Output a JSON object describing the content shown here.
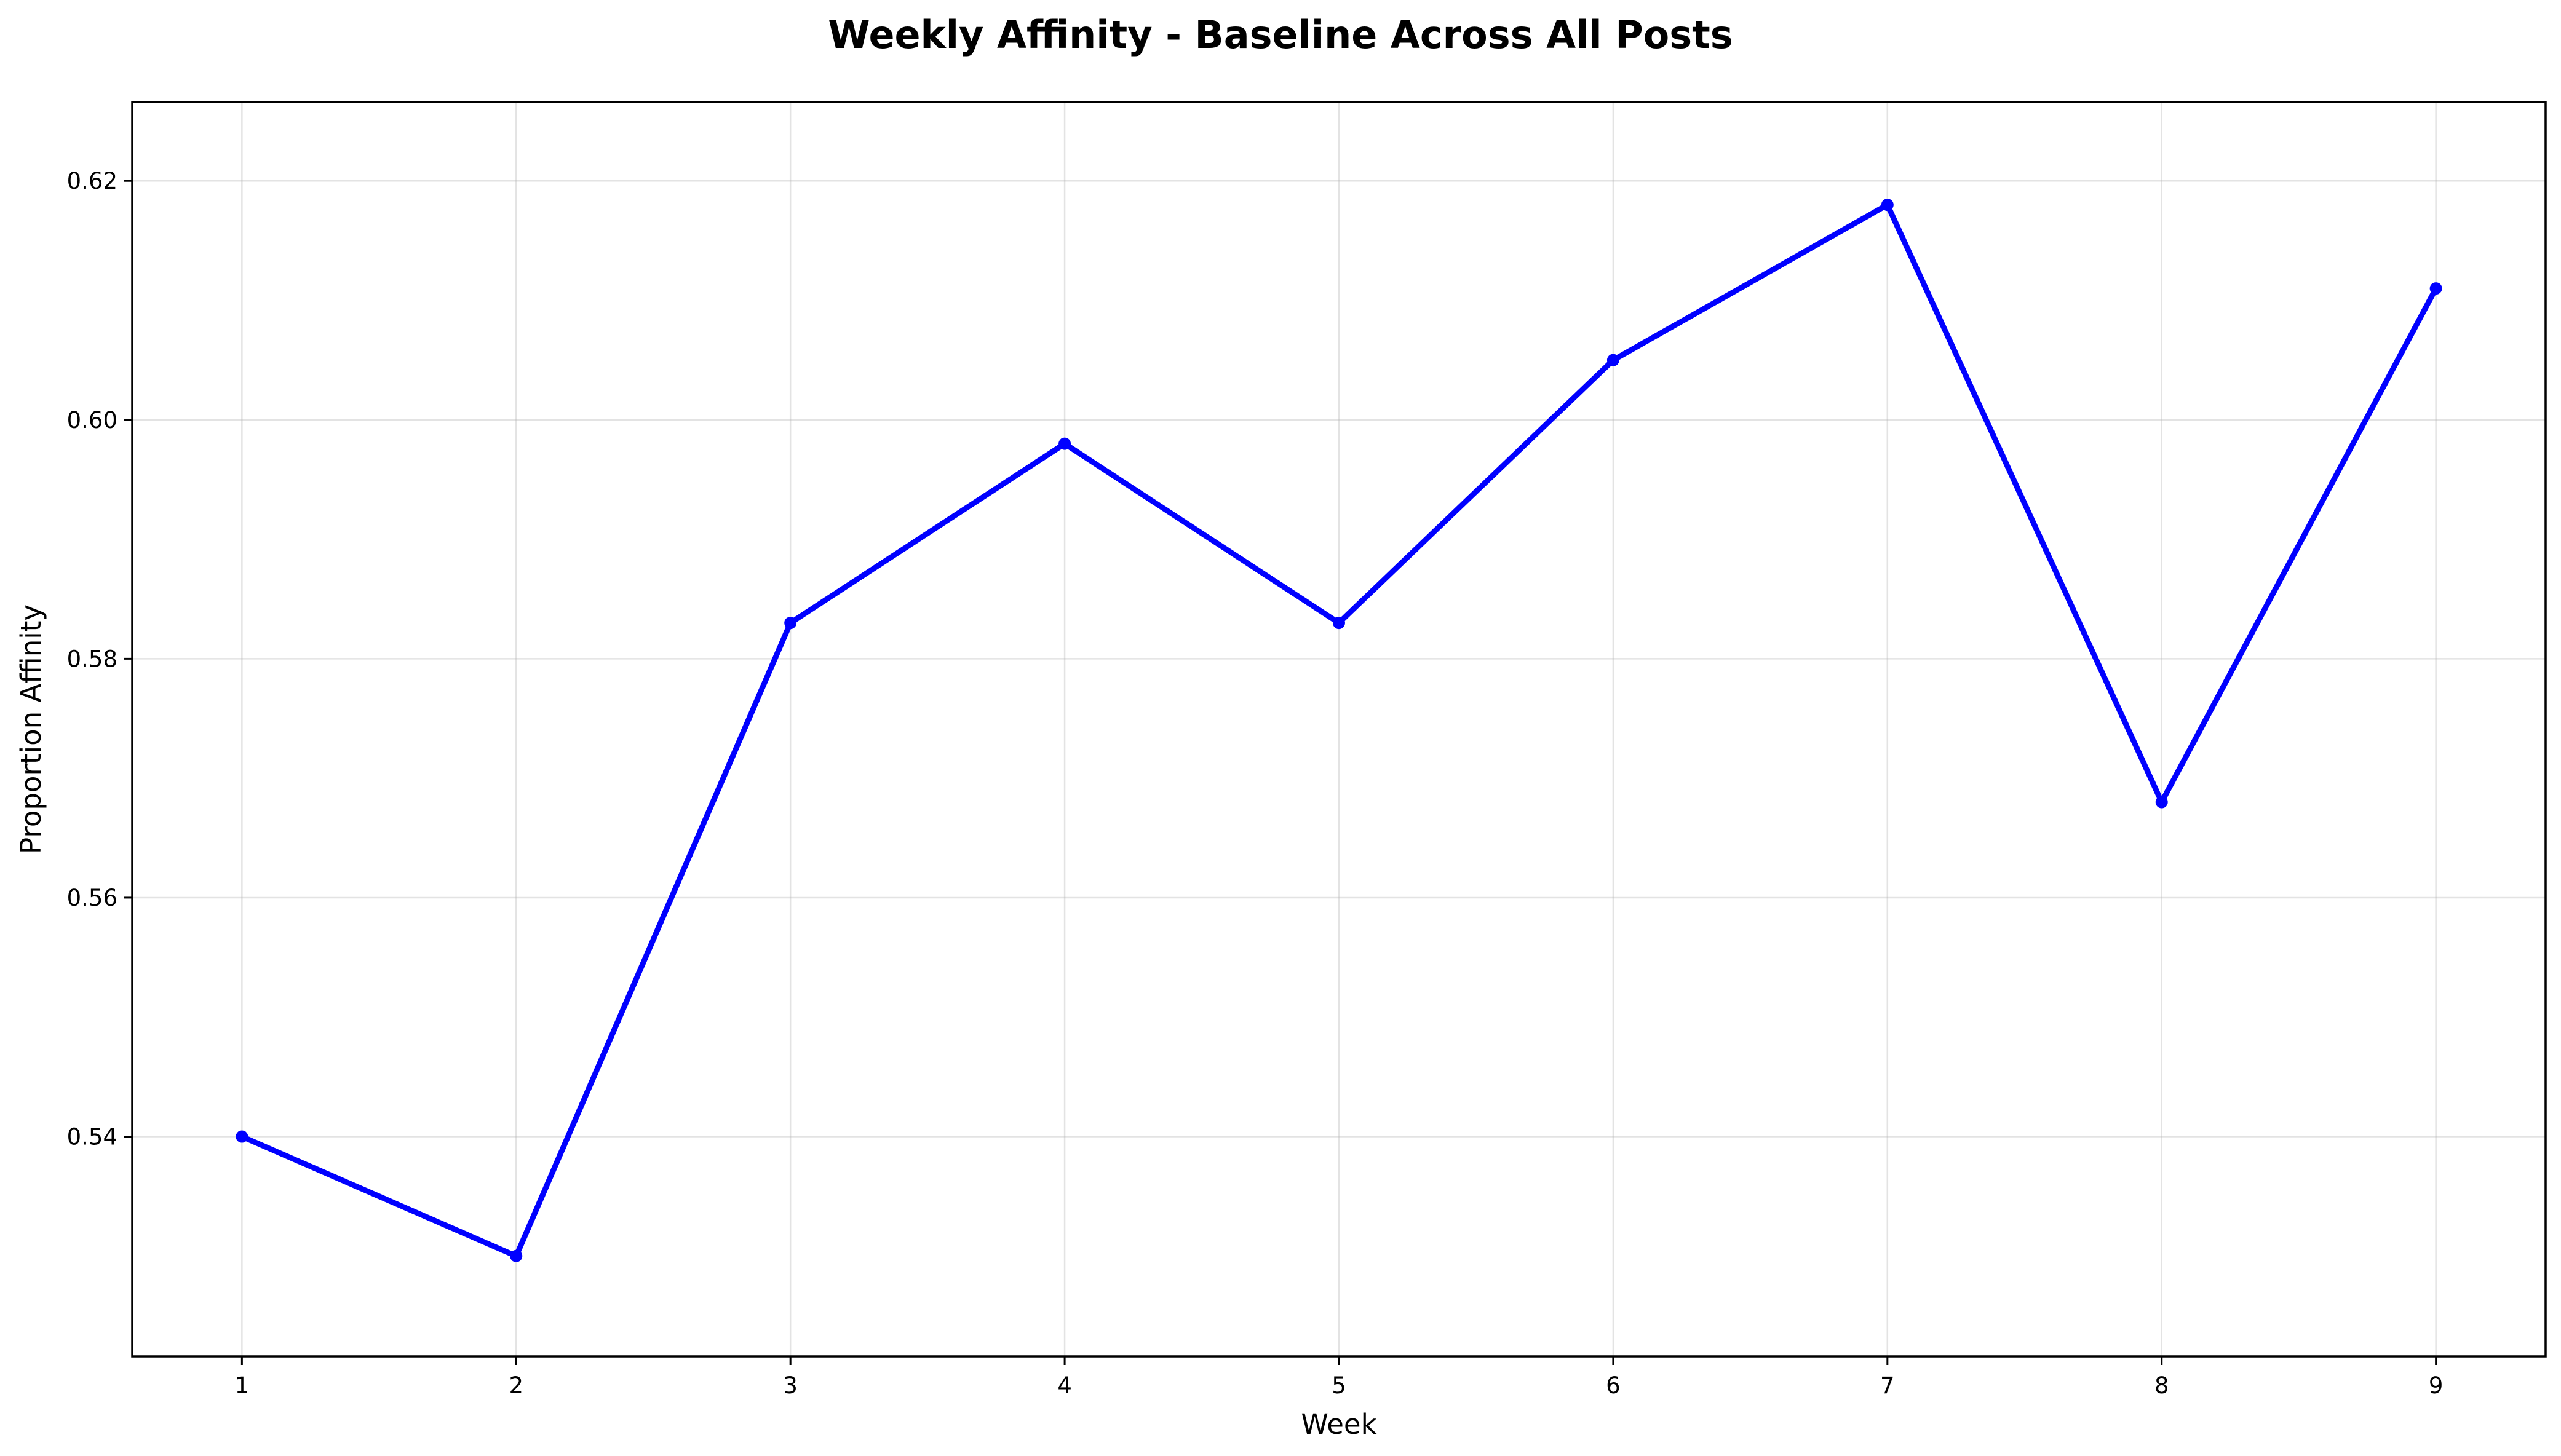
{
  "chart_data": {
    "type": "line",
    "title": "Weekly Affinity - Baseline Across All Posts",
    "xlabel": "Week",
    "ylabel": "Proportion Affinity",
    "x": [
      1,
      2,
      3,
      4,
      5,
      6,
      7,
      8,
      9
    ],
    "series": [
      {
        "values": [
          0.54,
          0.53,
          0.583,
          0.598,
          0.583,
          0.605,
          0.618,
          0.568,
          0.611
        ]
      }
    ],
    "xticks": [
      "1",
      "2",
      "3",
      "4",
      "5",
      "6",
      "7",
      "8",
      "9"
    ],
    "yticks": [
      "0.54",
      "0.56",
      "0.58",
      "0.60",
      "0.62"
    ],
    "xlim": [
      0.6,
      9.4
    ],
    "ylim": [
      0.5216,
      0.6266
    ],
    "grid": true,
    "marker": "circle",
    "colors": {
      "line": "#0000ff",
      "marker": "#0000ff"
    }
  }
}
